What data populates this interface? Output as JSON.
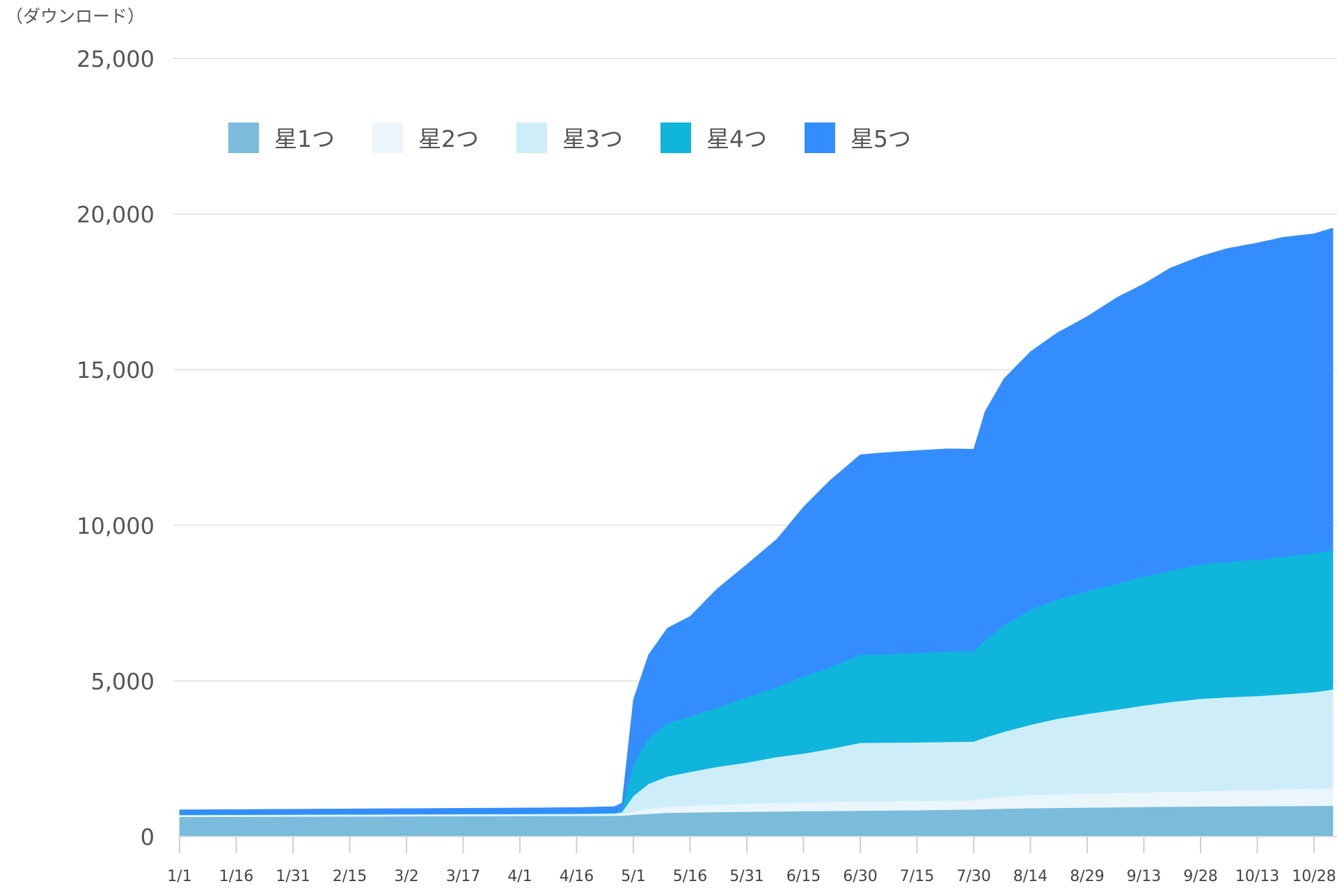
{
  "chart_data": {
    "type": "area",
    "stacked": true,
    "title": "",
    "unit_label": "（ダウンロード）",
    "xlabel": "",
    "ylabel": "",
    "ylim": [
      0,
      25000
    ],
    "y_ticks": [
      0,
      5000,
      10000,
      15000,
      20000,
      25000
    ],
    "y_tick_labels": [
      "0",
      "5,000",
      "10,000",
      "15,000",
      "20,000",
      "25,000"
    ],
    "x_ticks": [
      "1/1",
      "1/16",
      "1/31",
      "2/15",
      "3/2",
      "3/17",
      "4/1",
      "4/16",
      "5/1",
      "5/16",
      "5/31",
      "6/15",
      "6/30",
      "7/15",
      "7/30",
      "8/14",
      "8/29",
      "9/13",
      "9/28",
      "10/13",
      "10/28"
    ],
    "grid": true,
    "legend_position": "top-left",
    "x": [
      "1/1",
      "1/16",
      "1/31",
      "2/15",
      "3/2",
      "3/17",
      "4/1",
      "4/16",
      "4/26",
      "4/28",
      "5/1",
      "5/5",
      "5/10",
      "5/16",
      "5/23",
      "5/31",
      "6/8",
      "6/15",
      "6/22",
      "6/30",
      "7/5",
      "7/15",
      "7/23",
      "7/30",
      "8/2",
      "8/7",
      "8/14",
      "8/21",
      "8/29",
      "9/6",
      "9/13",
      "9/20",
      "9/28",
      "10/5",
      "10/13",
      "10/20",
      "10/28",
      "11/2"
    ],
    "series": [
      {
        "name": "星1つ",
        "color": "#7bbbdb",
        "values": [
          630,
          635,
          640,
          645,
          650,
          655,
          660,
          665,
          668,
          672,
          700,
          730,
          760,
          775,
          785,
          795,
          805,
          815,
          820,
          830,
          835,
          845,
          860,
          870,
          880,
          895,
          910,
          920,
          930,
          940,
          950,
          960,
          965,
          970,
          975,
          980,
          985,
          990
        ]
      },
      {
        "name": "星2つ",
        "color": "#eaf5fc",
        "values": [
          45,
          45,
          45,
          45,
          45,
          45,
          45,
          45,
          50,
          60,
          100,
          160,
          200,
          220,
          240,
          260,
          280,
          290,
          295,
          300,
          300,
          300,
          300,
          300,
          340,
          390,
          430,
          440,
          450,
          460,
          470,
          480,
          490,
          505,
          520,
          540,
          555,
          565
        ]
      },
      {
        "name": "星3つ",
        "color": "#cdeef9",
        "values": [
          20,
          20,
          20,
          20,
          20,
          20,
          20,
          20,
          25,
          50,
          500,
          800,
          970,
          1080,
          1210,
          1320,
          1470,
          1560,
          1700,
          1880,
          1880,
          1880,
          1880,
          1880,
          1960,
          2080,
          2250,
          2420,
          2560,
          2680,
          2790,
          2880,
          2970,
          3000,
          3020,
          3050,
          3100,
          3170
        ]
      },
      {
        "name": "星4つ",
        "color": "#10b5dc",
        "values": [
          10,
          10,
          10,
          10,
          10,
          10,
          10,
          10,
          20,
          80,
          1000,
          1450,
          1720,
          1780,
          1900,
          2100,
          2250,
          2480,
          2620,
          2830,
          2830,
          2880,
          2900,
          2900,
          3120,
          3420,
          3700,
          3830,
          3950,
          4050,
          4140,
          4220,
          4320,
          4350,
          4380,
          4420,
          4460,
          4480
        ]
      },
      {
        "name": "星5つ",
        "color": "#338dfe",
        "values": [
          155,
          160,
          165,
          170,
          175,
          180,
          185,
          195,
          200,
          220,
          2100,
          2700,
          3050,
          3220,
          3810,
          4270,
          4760,
          5450,
          6010,
          6430,
          6480,
          6500,
          6520,
          6500,
          7360,
          7930,
          8290,
          8570,
          8820,
          9200,
          9410,
          9730,
          9900,
          10070,
          10180,
          10270,
          10270,
          10350
        ]
      }
    ]
  }
}
